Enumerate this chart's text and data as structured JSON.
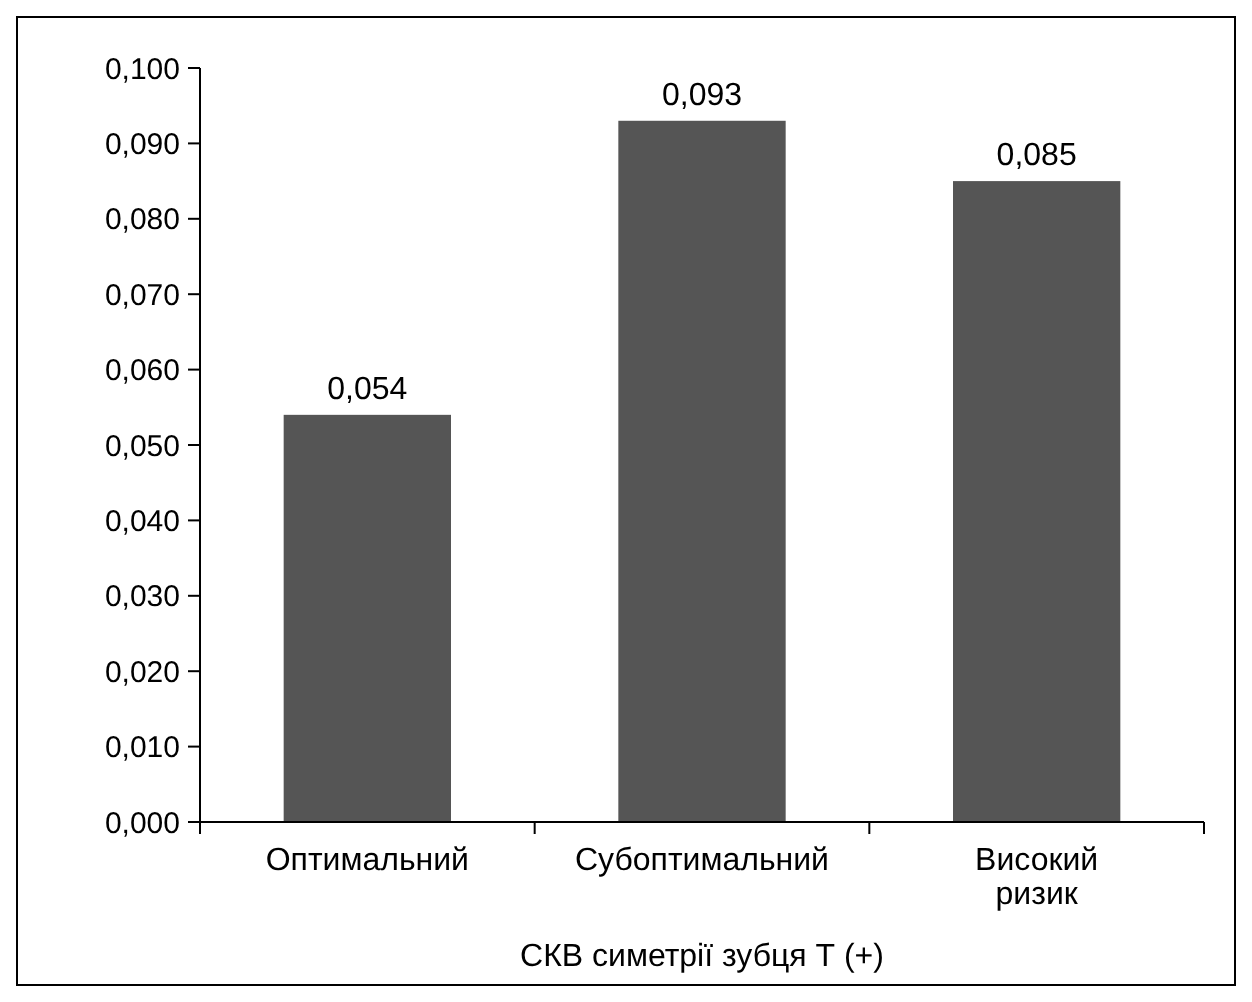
{
  "chart_data": {
    "type": "bar",
    "xlabel": "СКВ симетрії зубця Т (+)",
    "categories": [
      "Оптимальний",
      "Субоптимальний",
      "Високий ризик"
    ],
    "values": [
      0.054,
      0.093,
      0.085
    ],
    "value_labels": [
      "0,054",
      "0,093",
      "0,085"
    ],
    "color": "#555555",
    "ylim": [
      0,
      0.1
    ],
    "yticks": [
      {
        "value": 0,
        "label": "0,000"
      },
      {
        "value": 0.01,
        "label": "0,010"
      },
      {
        "value": 0.02,
        "label": "0,020"
      },
      {
        "value": 0.03,
        "label": "0,030"
      },
      {
        "value": 0.04,
        "label": "0,040"
      },
      {
        "value": 0.05,
        "label": "0,050"
      },
      {
        "value": 0.06,
        "label": "0,060"
      },
      {
        "value": 0.07,
        "label": "0,070"
      },
      {
        "value": 0.08,
        "label": "0,080"
      },
      {
        "value": 0.09,
        "label": "0,090"
      },
      {
        "value": 0.1,
        "label": "0,100"
      }
    ],
    "grid": false
  }
}
